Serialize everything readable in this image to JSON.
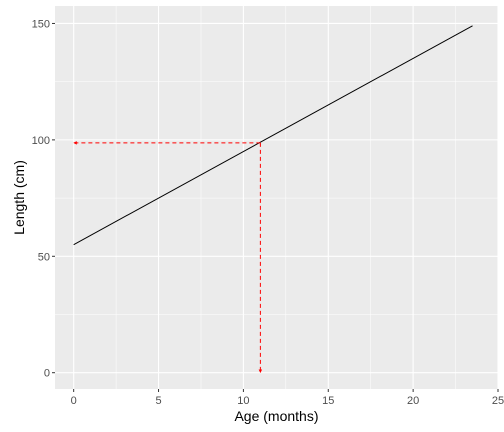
{
  "chart_data": {
    "type": "line",
    "xlabel": "Age (months)",
    "ylabel": "Length (cm)",
    "xlim": [
      -1.1,
      25
    ],
    "ylim": [
      -7,
      157.5
    ],
    "x_ticks": [
      0,
      5,
      10,
      15,
      20,
      25
    ],
    "y_ticks": [
      0,
      50,
      100,
      150
    ],
    "grid": true,
    "series": [
      {
        "x": [
          0,
          23.5
        ],
        "y": [
          55,
          149
        ],
        "color": "#000000"
      }
    ],
    "annotations": [
      {
        "kind": "dashed-arrow",
        "from": [
          11,
          98.7
        ],
        "to": [
          0,
          98.7
        ],
        "color": "#ff0000"
      },
      {
        "kind": "dashed-arrow",
        "from": [
          11,
          98.7
        ],
        "to": [
          11,
          0
        ],
        "color": "#ff0000"
      }
    ],
    "panel_color": "#ebebeb",
    "grid_color": "#ffffff"
  }
}
